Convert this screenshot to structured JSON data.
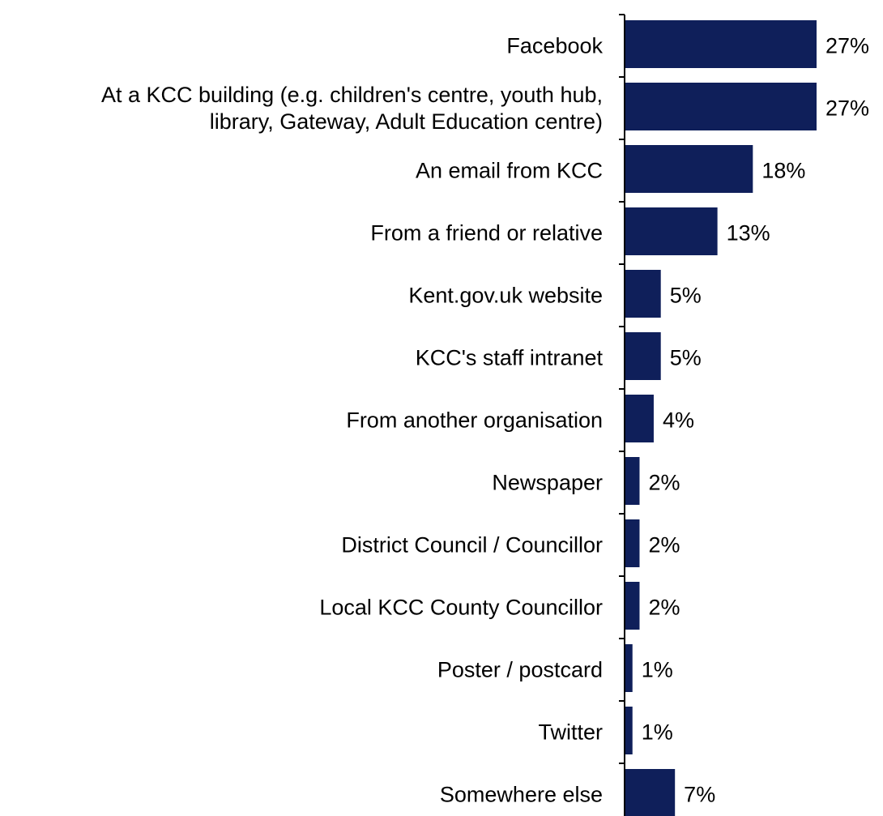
{
  "chart_data": {
    "type": "bar",
    "orientation": "horizontal",
    "title": "",
    "xlabel": "",
    "ylabel": "",
    "categories": [
      [
        "Facebook"
      ],
      [
        "At a KCC building (e.g. children's centre, youth hub,",
        "library, Gateway, Adult Education centre)"
      ],
      [
        "An email from KCC"
      ],
      [
        "From a friend or relative"
      ],
      [
        "Kent.gov.uk website"
      ],
      [
        "KCC's staff intranet"
      ],
      [
        "From another organisation"
      ],
      [
        "Newspaper"
      ],
      [
        "District Council / Councillor"
      ],
      [
        "Local KCC County Councillor"
      ],
      [
        "Poster / postcard"
      ],
      [
        "Twitter"
      ],
      [
        "Somewhere else"
      ]
    ],
    "values": [
      27,
      27,
      18,
      13,
      5,
      5,
      4,
      2,
      2,
      2,
      1,
      1,
      7
    ],
    "value_labels": [
      "27%",
      "27%",
      "18%",
      "13%",
      "5%",
      "5%",
      "4%",
      "2%",
      "2%",
      "2%",
      "1%",
      "1%",
      "7%"
    ],
    "unit": "%",
    "xlim": [
      0,
      27
    ],
    "bar_color": "#0f1f5a",
    "axis_color": "#000000",
    "grid": false,
    "legend": "none"
  }
}
